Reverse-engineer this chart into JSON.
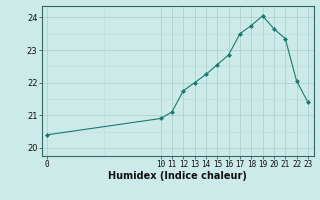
{
  "x_data": [
    0,
    10,
    11,
    12,
    13,
    14,
    15,
    16,
    17,
    18,
    19,
    20,
    21,
    22,
    23
  ],
  "y_data": [
    20.4,
    20.9,
    21.1,
    21.75,
    22.0,
    22.25,
    22.55,
    22.85,
    23.5,
    23.75,
    24.05,
    23.65,
    23.35,
    22.05,
    21.4
  ],
  "xlabel": "Humidex (Indice chaleur)",
  "line_color": "#1a7a6e",
  "bg_color": "#cceae8",
  "grid_major_color": "#aacccc",
  "grid_minor_color": "#bbdddd",
  "ylim": [
    19.75,
    24.35
  ],
  "xlim": [
    -0.5,
    23.5
  ],
  "yticks": [
    20,
    21,
    22,
    23,
    24
  ],
  "xticks": [
    0,
    10,
    11,
    12,
    13,
    14,
    15,
    16,
    17,
    18,
    19,
    20,
    21,
    22,
    23
  ],
  "tick_fontsize": 5.5,
  "xlabel_fontsize": 7,
  "spine_color": "#336666"
}
